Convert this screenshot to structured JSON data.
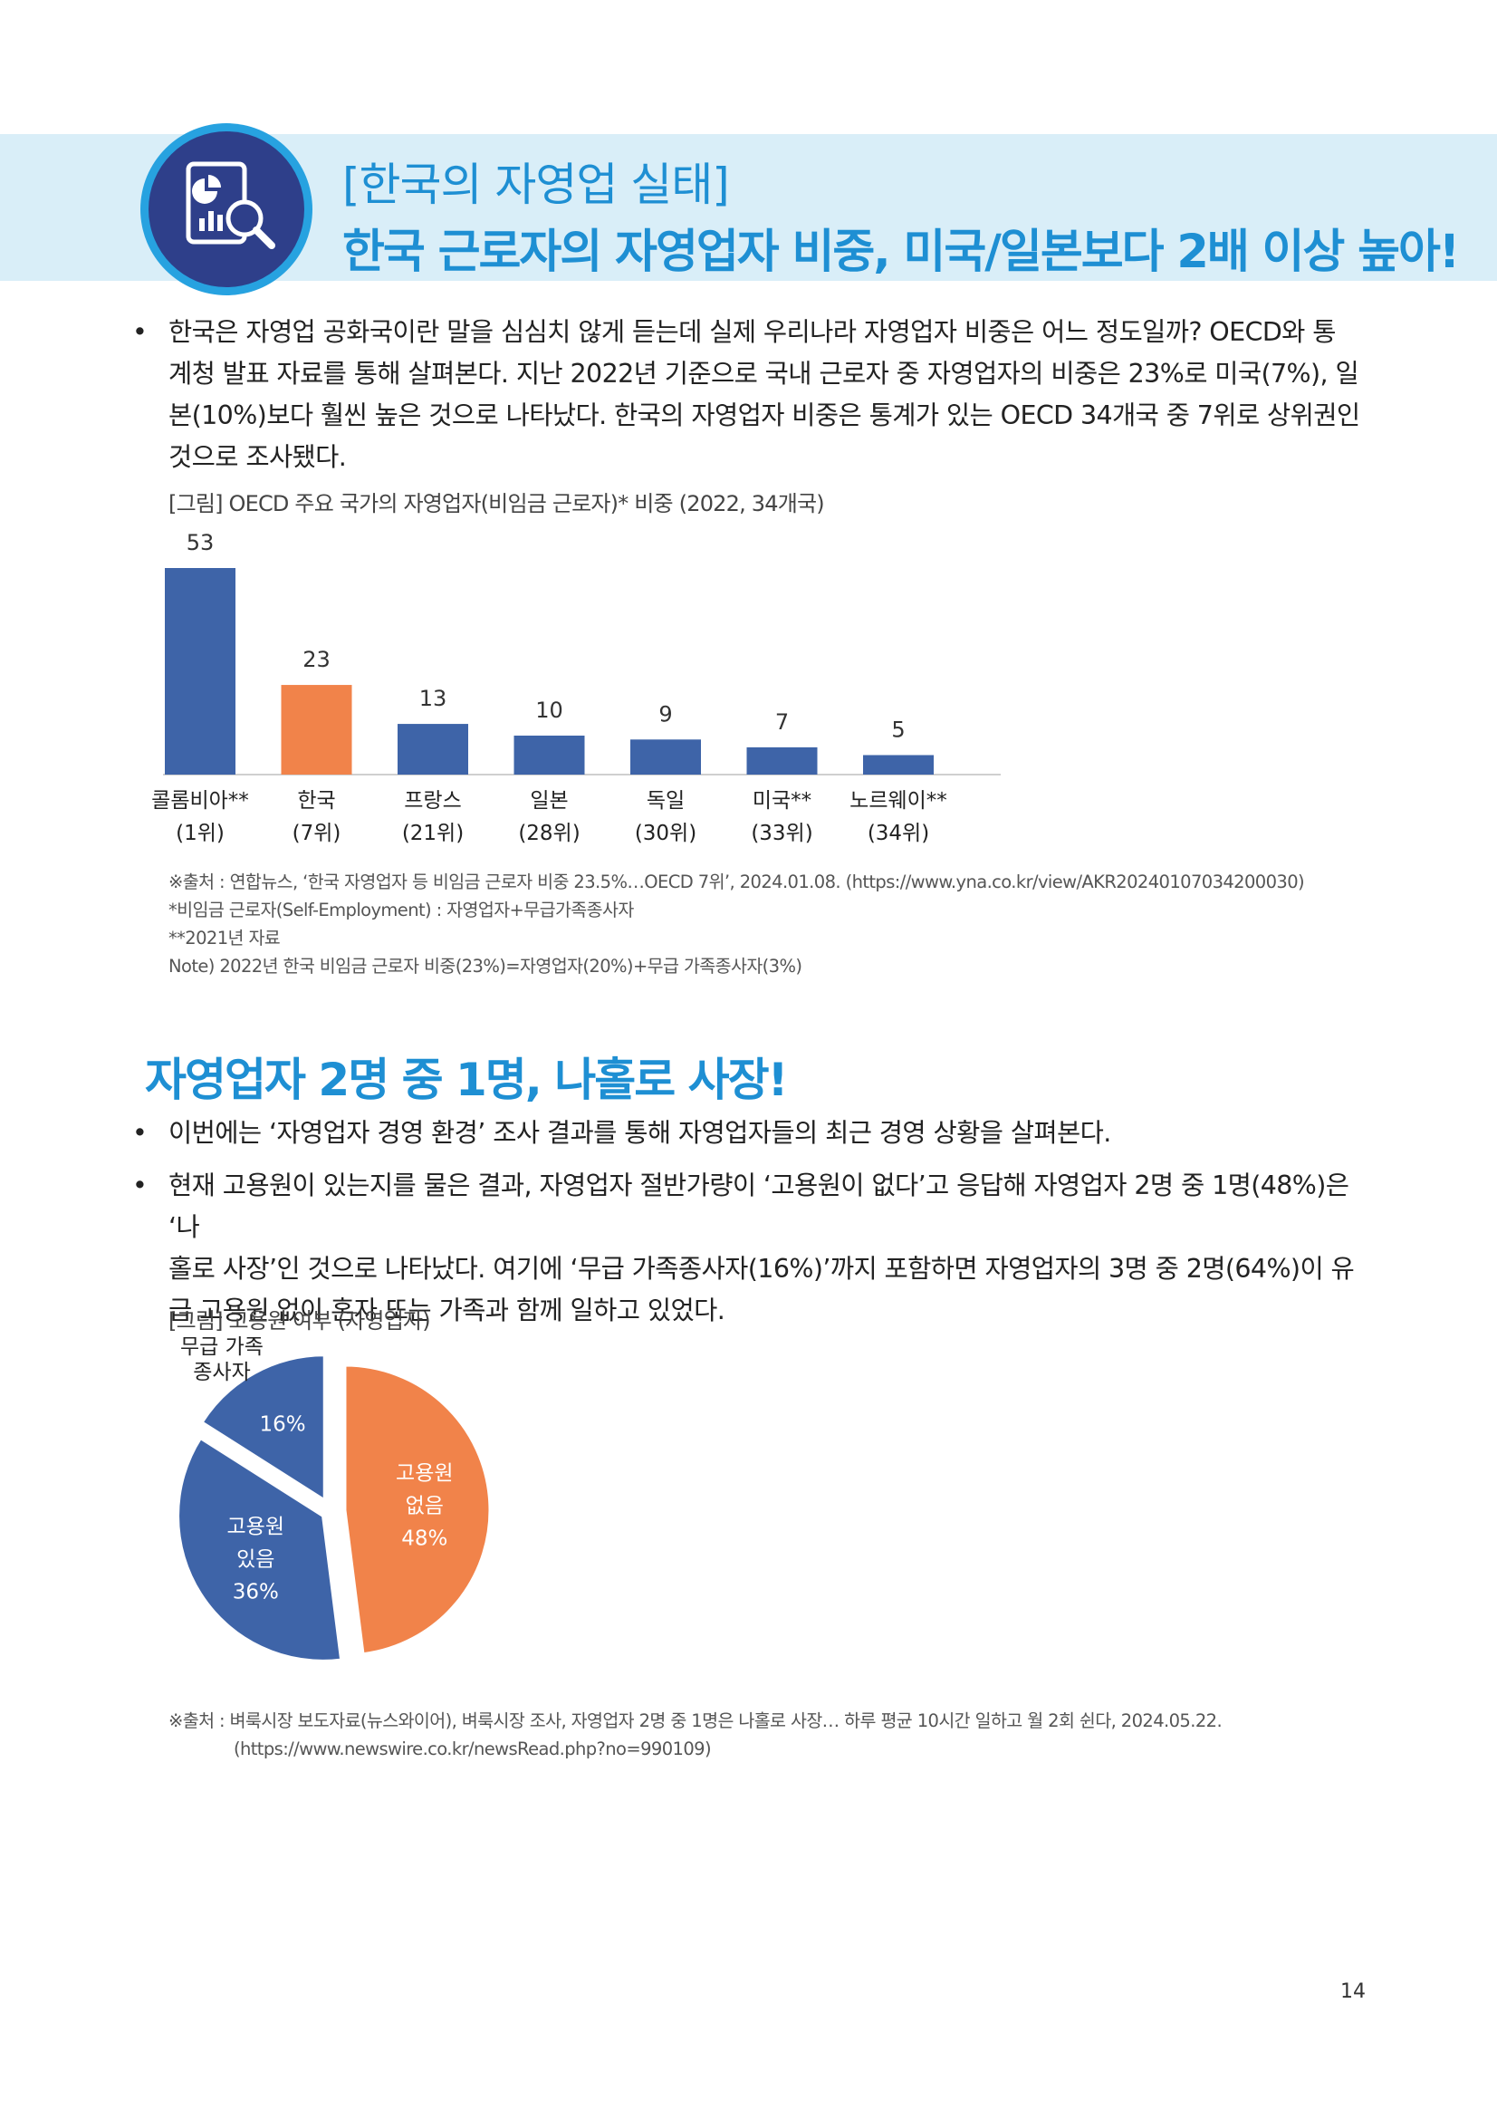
{
  "header": {
    "subtitle": "[한국의 자영업 실태]",
    "title": "한국 근로자의 자영업자 비중, 미국/일본보다 2배 이상 높아!"
  },
  "intro": {
    "lines": [
      "한국은 자영업 공화국이란 말을 심심치 않게 듣는데 실제 우리나라 자영업자 비중은 어느 정도일까? OECD와 통",
      "계청 발표 자료를 통해 살펴본다. 지난 2022년 기준으로 국내 근로자 중 자영업자의 비중은 23%로 미국(7%), 일",
      "본(10%)보다 훨씬 높은 것으로 나타났다. 한국의 자영업자 비중은 통계가 있는 OECD 34개국 중 7위로 상위권인",
      "것으로 조사됐다."
    ]
  },
  "figure1": {
    "caption": "[그림] OECD 주요 국가의 자영업자(비임금 근로자)* 비중 (2022, 34개국)",
    "sources": [
      "※출처 : 연합뉴스, ‘한국 자영업자 등 비임금 근로자 비중 23.5%…OECD 7위’, 2024.01.08. (https://www.yna.co.kr/view/AKR20240107034200030)",
      "*비임금 근로자(Self-Employment) : 자영업자+무급가족종사자",
      "**2021년 자료",
      "Note) 2022년 한국 비임금 근로자 비중(23%)=자영업자(20%)+무급 가족종사자(3%)"
    ]
  },
  "section2": {
    "title": "자영업자 2명 중 1명, 나홀로 사장!",
    "bullet1": "이번에는 ‘자영업자 경영 환경’ 조사 결과를 통해 자영업자들의 최근 경영 상황을 살펴본다.",
    "bullet2_lines": [
      "현재 고용원이 있는지를 물은 결과, 자영업자 절반가량이 ‘고용원이 없다’고 응답해 자영업자 2명 중 1명(48%)은 ‘나",
      "홀로 사장’인 것으로 나타났다. 여기에 ‘무급 가족종사자(16%)’까지 포함하면 자영업자의 3명 중 2명(64%)이 유",
      "급 고용원 없이 혼자 또는 가족과 함께 일하고 있었다."
    ]
  },
  "figure2": {
    "caption": "[그림] 고용원 여부 (자영업자)",
    "sources": [
      "※출처 : 벼룩시장 보도자료(뉴스와이어), 벼룩시장 조사, 자영업자 2명 중 1명은 나홀로 사장… 하루 평균 10시간 일하고 월 2회 쉰다, 2024.05.22.",
      "(https://www.newswire.co.kr/newsRead.php?no=990109)"
    ]
  },
  "page_number": "14",
  "colors": {
    "accent": "#1e8fd3",
    "bar_blue": "#3e64a8",
    "bar_orange": "#f1834a",
    "band": "#d9eef8"
  },
  "icons": {
    "logo": "chart-magnifier-icon"
  },
  "chart_data": [
    {
      "type": "bar",
      "categories": [
        [
          "콜롬비아**",
          "(1위)"
        ],
        [
          "한국",
          "(7위)"
        ],
        [
          "프랑스",
          "(21위)"
        ],
        [
          "일본",
          "(28위)"
        ],
        [
          "독일",
          "(30위)"
        ],
        [
          "미국**",
          "(33위)"
        ],
        [
          "노르웨이**",
          "(34위)"
        ]
      ],
      "values": [
        53,
        23,
        13,
        10,
        9,
        7,
        5
      ],
      "highlight_index": 1,
      "ylim": [
        0,
        53
      ],
      "grid": false
    },
    {
      "type": "pie",
      "slices": [
        {
          "label_lines": [
            "고용원",
            "없음",
            "48%"
          ],
          "value": 48,
          "color": "#f1834a"
        },
        {
          "label_lines": [
            "고용원",
            "있음",
            "36%"
          ],
          "value": 36,
          "color": "#3e64a8"
        },
        {
          "label_lines": [
            "16%"
          ],
          "value": 16,
          "color": "#3e64a8",
          "outside_label": [
            "무급 가족",
            "종사자"
          ]
        }
      ]
    }
  ]
}
